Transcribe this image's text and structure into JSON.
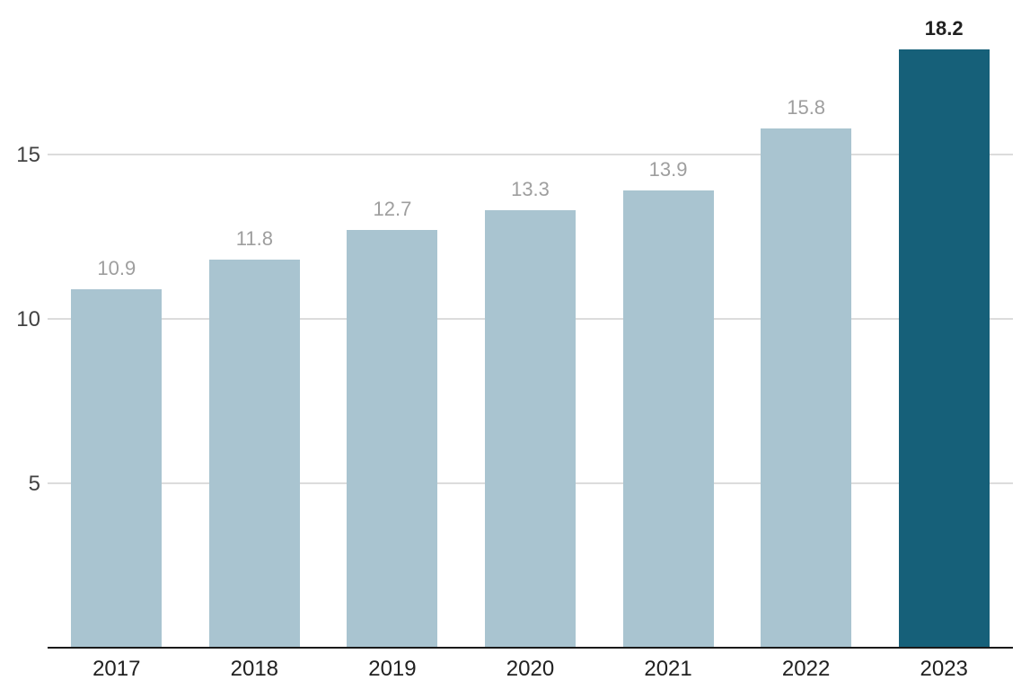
{
  "chart_data": {
    "type": "bar",
    "title": "",
    "xlabel": "",
    "ylabel": "",
    "categories": [
      "2017",
      "2018",
      "2019",
      "2020",
      "2021",
      "2022",
      "2023"
    ],
    "values": [
      10.9,
      11.8,
      12.7,
      13.3,
      13.9,
      15.8,
      18.2
    ],
    "value_labels": [
      "10.9",
      "11.8",
      "12.7",
      "13.3",
      "13.9",
      "15.8",
      "18.2"
    ],
    "highlight_index": 6,
    "yticks": [
      5,
      10,
      15
    ],
    "ytick_labels": [
      "5",
      "10",
      "15"
    ],
    "ylim": [
      0,
      19.7
    ],
    "grid": true,
    "legend_position": "none",
    "colors": {
      "bar_default": "#a9c4d0",
      "bar_highlight": "#166079",
      "value_label_default": "#9e9e9e",
      "value_label_highlight": "#212121",
      "gridline": "#dcdcdc",
      "axis_line": "#1a1a1a",
      "ytick_label": "#424242",
      "category_label": "#212121",
      "background": "#ffffff"
    }
  }
}
